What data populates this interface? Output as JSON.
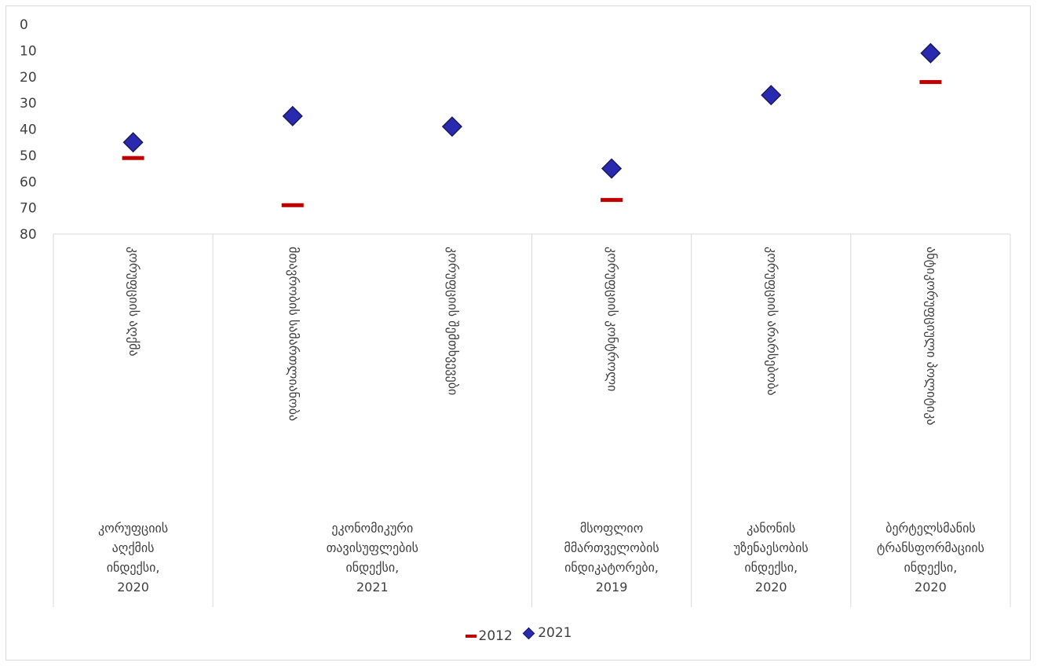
{
  "chart_data": {
    "type": "scatter",
    "y_axis": {
      "min": 0,
      "max": 80,
      "step": 10,
      "reversed": true,
      "ticks": [
        "0",
        "10",
        "20",
        "30",
        "40",
        "50",
        "60",
        "70",
        "80"
      ]
    },
    "categories": [
      "კორუფციის აღქმა",
      "მთავრობის სამართლიანობა",
      "კორუფციის შემთხვევები",
      "კორუფციის კონტროლი",
      "კორუფციის არარსებობა",
      "ანტიკორუფციული პოლიტიკა"
    ],
    "groups": [
      {
        "label_lines": [
          "კორუფციის",
          "აღქმის",
          "ინდექსი,",
          "2020"
        ],
        "span": [
          0,
          0
        ]
      },
      {
        "label_lines": [
          "ეკონომიკური",
          "თავისუფლების",
          "ინდექსი,",
          "2021"
        ],
        "span": [
          1,
          2
        ]
      },
      {
        "label_lines": [
          "მსოფლიო",
          "მმართველობის",
          "ინდიკატორები,",
          "2019"
        ],
        "span": [
          3,
          3
        ]
      },
      {
        "label_lines": [
          "კანონის",
          "უზენაესობის",
          "ინდექსი,",
          "2020"
        ],
        "span": [
          4,
          4
        ]
      },
      {
        "label_lines": [
          "ბერტელსმანის",
          "ტრანსფორმაციის",
          "ინდექსი,",
          "2020"
        ],
        "span": [
          5,
          5
        ]
      }
    ],
    "series": [
      {
        "name": "2012",
        "marker": "dash",
        "color": "#c00000",
        "values": [
          51,
          69,
          null,
          67,
          null,
          22
        ]
      },
      {
        "name": "2021",
        "marker": "diamond",
        "color": "#2a2ab0",
        "values": [
          45,
          35,
          39,
          55,
          27,
          11
        ]
      }
    ],
    "grid": false,
    "legend_position": "bottom"
  }
}
